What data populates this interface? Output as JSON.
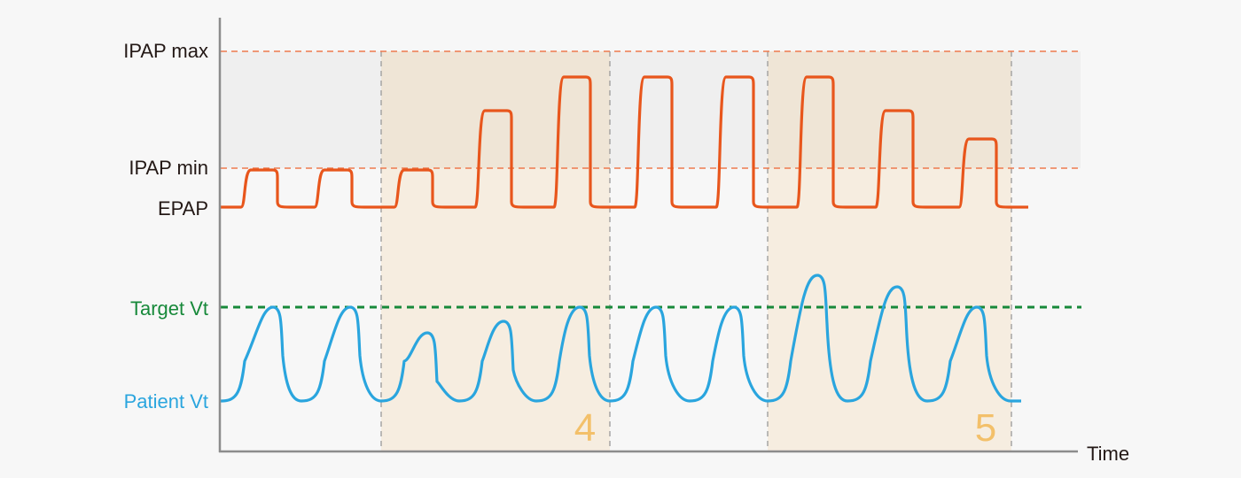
{
  "labels": {
    "ipap_max": "IPAP max",
    "ipap_min": "IPAP min",
    "epap": "EPAP",
    "target_vt": "Target Vt",
    "patient_vt": "Patient Vt",
    "x_axis": "Time"
  },
  "regions": [
    {
      "label": "4"
    },
    {
      "label": "5"
    }
  ],
  "colors": {
    "pressure": "#e8561c",
    "patient_vt": "#2aa5de",
    "target_vt": "#17893a",
    "limit_lines": "#ee7a4e",
    "region_number": "#f3c06a",
    "text": "#231815",
    "axis": "#8c8c8c"
  }
}
